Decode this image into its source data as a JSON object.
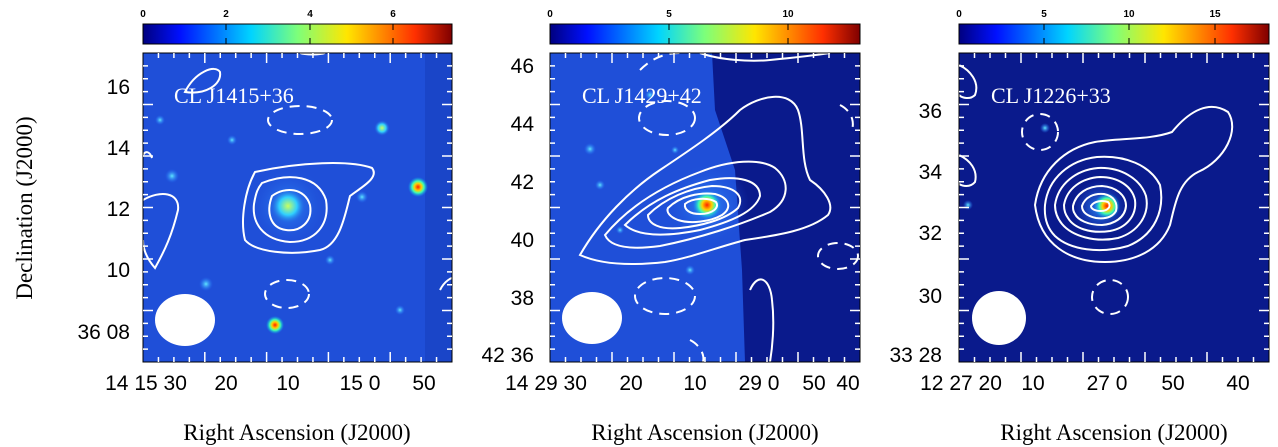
{
  "shared": {
    "xlabel": "Right Ascension (J2000)",
    "ylabel": "Declination (J2000)"
  },
  "chart_data": [
    {
      "type": "heatmap",
      "title": "CL J1415+36",
      "colorbar": {
        "ticks": [
          "0",
          "2",
          "4",
          "6"
        ],
        "vmin": 0,
        "vmax": 7.4
      },
      "x_ticks": [
        "14 15 30",
        "20",
        "10",
        "15 0",
        "50"
      ],
      "y_ticks": [
        "36 08",
        "10",
        "12",
        "14",
        "16"
      ],
      "colors": {
        "background": "#1f4fd8",
        "hot": "#e01010"
      }
    },
    {
      "type": "heatmap",
      "title": "CL J1429+42",
      "colorbar": {
        "ticks": [
          "0",
          "5",
          "10"
        ],
        "vmin": 0,
        "vmax": 13
      },
      "x_ticks": [
        "14 29 30",
        "20",
        "10",
        "29 0",
        "50",
        "40"
      ],
      "y_ticks": [
        "42 36",
        "38",
        "40",
        "42",
        "44",
        "46"
      ],
      "colors": {
        "background": "#1f4fd8",
        "dark_region": "#0a1a8c",
        "hot": "#e01010"
      }
    },
    {
      "type": "heatmap",
      "title": "CL J1226+33",
      "colorbar": {
        "ticks": [
          "0",
          "5",
          "10",
          "15"
        ],
        "vmin": 0,
        "vmax": 17.5
      },
      "x_ticks": [
        "12 27 20",
        "10",
        "27 0",
        "50",
        "40"
      ],
      "y_ticks": [
        "33 28",
        "30",
        "32",
        "34",
        "36"
      ],
      "colors": {
        "background": "#0a1a8c",
        "hot": "#e01010"
      }
    }
  ]
}
